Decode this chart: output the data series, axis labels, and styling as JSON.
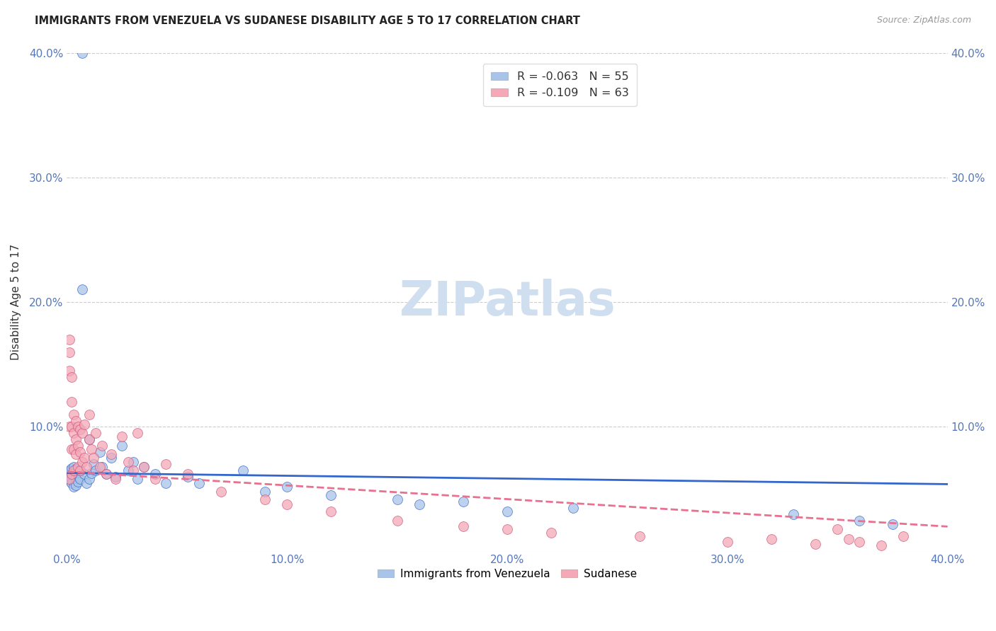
{
  "title": "IMMIGRANTS FROM VENEZUELA VS SUDANESE DISABILITY AGE 5 TO 17 CORRELATION CHART",
  "source": "Source: ZipAtlas.com",
  "ylabel": "Disability Age 5 to 17",
  "xlim": [
    0,
    0.4
  ],
  "ylim": [
    0,
    0.4
  ],
  "xticks": [
    0.0,
    0.1,
    0.2,
    0.3,
    0.4
  ],
  "yticks": [
    0.0,
    0.1,
    0.2,
    0.3,
    0.4
  ],
  "xtick_labels": [
    "0.0%",
    "10.0%",
    "20.0%",
    "30.0%",
    "40.0%"
  ],
  "ytick_labels_left": [
    "",
    "10.0%",
    "20.0%",
    "30.0%",
    "40.0%"
  ],
  "ytick_labels_right": [
    "",
    "10.0%",
    "20.0%",
    "30.0%",
    "40.0%"
  ],
  "color_venezuela": "#a8c4e8",
  "color_sudanese": "#f4a8b8",
  "trendline_venezuela_color": "#3366cc",
  "trendline_sudanese_color": "#e87090",
  "legend_R_venezuela": "-0.063",
  "legend_N_venezuela": "55",
  "legend_R_sudanese": "-0.109",
  "legend_N_sudanese": "63",
  "watermark": "ZIPatlas",
  "watermark_color": "#d0dff0",
  "venezuela_x": [
    0.001,
    0.001,
    0.001,
    0.001,
    0.002,
    0.002,
    0.002,
    0.002,
    0.003,
    0.003,
    0.003,
    0.003,
    0.004,
    0.004,
    0.004,
    0.005,
    0.005,
    0.005,
    0.006,
    0.006,
    0.007,
    0.007,
    0.008,
    0.009,
    0.01,
    0.01,
    0.011,
    0.012,
    0.013,
    0.015,
    0.016,
    0.018,
    0.02,
    0.022,
    0.025,
    0.028,
    0.03,
    0.032,
    0.035,
    0.04,
    0.045,
    0.055,
    0.06,
    0.08,
    0.09,
    0.1,
    0.12,
    0.15,
    0.16,
    0.18,
    0.2,
    0.23,
    0.33,
    0.36,
    0.375
  ],
  "venezuela_y": [
    0.06,
    0.063,
    0.057,
    0.065,
    0.058,
    0.062,
    0.055,
    0.067,
    0.061,
    0.064,
    0.052,
    0.068,
    0.059,
    0.066,
    0.053,
    0.06,
    0.063,
    0.056,
    0.058,
    0.065,
    0.4,
    0.21,
    0.062,
    0.055,
    0.09,
    0.058,
    0.063,
    0.07,
    0.065,
    0.08,
    0.068,
    0.062,
    0.075,
    0.06,
    0.085,
    0.065,
    0.072,
    0.058,
    0.068,
    0.062,
    0.055,
    0.06,
    0.055,
    0.065,
    0.048,
    0.052,
    0.045,
    0.042,
    0.038,
    0.04,
    0.032,
    0.035,
    0.03,
    0.025,
    0.022
  ],
  "sudanese_x": [
    0.001,
    0.001,
    0.001,
    0.001,
    0.001,
    0.002,
    0.002,
    0.002,
    0.002,
    0.002,
    0.003,
    0.003,
    0.003,
    0.003,
    0.004,
    0.004,
    0.004,
    0.005,
    0.005,
    0.005,
    0.006,
    0.006,
    0.006,
    0.007,
    0.007,
    0.008,
    0.008,
    0.009,
    0.01,
    0.01,
    0.011,
    0.012,
    0.013,
    0.015,
    0.016,
    0.018,
    0.02,
    0.022,
    0.025,
    0.028,
    0.03,
    0.032,
    0.035,
    0.04,
    0.045,
    0.055,
    0.07,
    0.09,
    0.1,
    0.12,
    0.15,
    0.18,
    0.2,
    0.22,
    0.26,
    0.3,
    0.32,
    0.34,
    0.35,
    0.355,
    0.36,
    0.37,
    0.38
  ],
  "sudanese_y": [
    0.17,
    0.16,
    0.145,
    0.1,
    0.058,
    0.14,
    0.12,
    0.1,
    0.082,
    0.062,
    0.11,
    0.095,
    0.082,
    0.065,
    0.105,
    0.09,
    0.078,
    0.1,
    0.085,
    0.068,
    0.098,
    0.08,
    0.065,
    0.095,
    0.072,
    0.102,
    0.075,
    0.068,
    0.11,
    0.09,
    0.082,
    0.075,
    0.095,
    0.068,
    0.085,
    0.062,
    0.078,
    0.058,
    0.092,
    0.072,
    0.065,
    0.095,
    0.068,
    0.058,
    0.07,
    0.062,
    0.048,
    0.042,
    0.038,
    0.032,
    0.025,
    0.02,
    0.018,
    0.015,
    0.012,
    0.008,
    0.01,
    0.006,
    0.018,
    0.01,
    0.008,
    0.005,
    0.012
  ],
  "trendline_v_x0": 0.0,
  "trendline_v_y0": 0.063,
  "trendline_v_x1": 0.4,
  "trendline_v_y1": 0.054,
  "trendline_s_x0": 0.0,
  "trendline_s_y0": 0.064,
  "trendline_s_x1": 0.4,
  "trendline_s_y1": 0.02
}
